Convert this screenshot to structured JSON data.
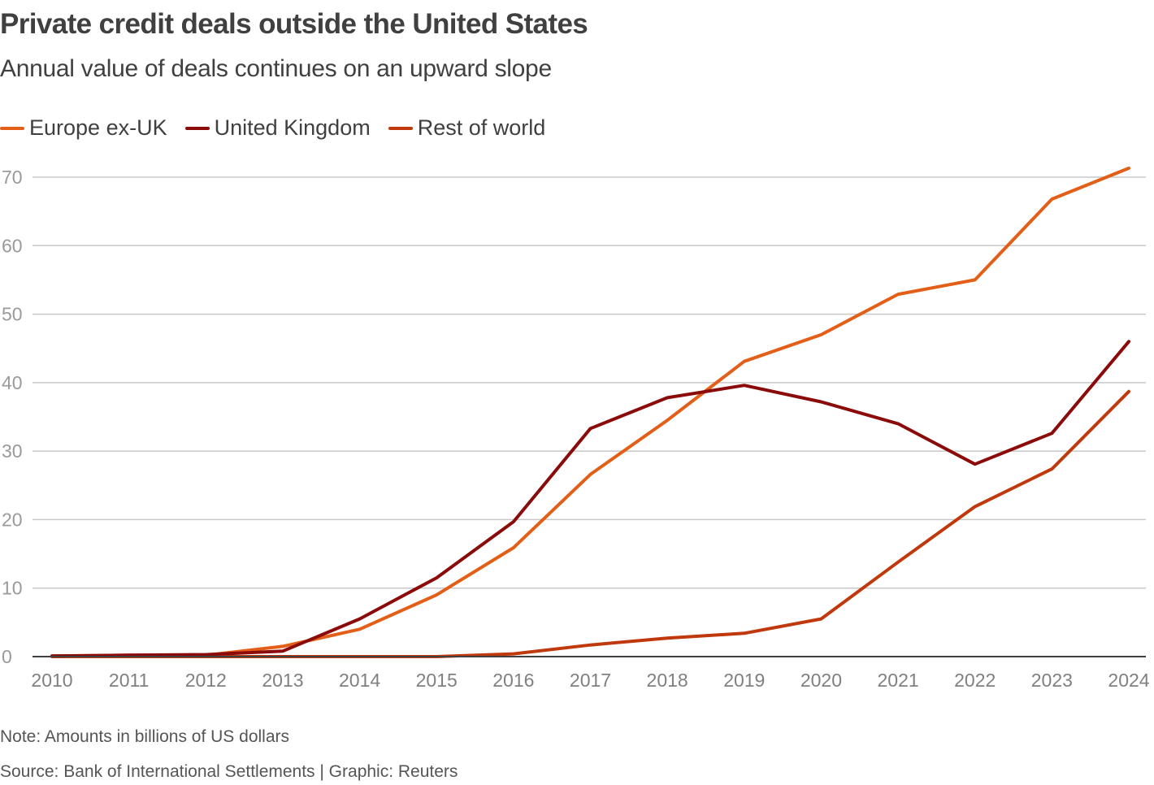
{
  "header": {
    "title": "Private credit deals outside the United States",
    "subtitle": "Annual value of deals continues on an upward slope"
  },
  "footer": {
    "note": "Note: Amounts in billions of US dollars",
    "source": "Source: Bank of International Settlements | Graphic: Reuters"
  },
  "chart_data": {
    "type": "line",
    "title": "Private credit deals outside the United States",
    "subtitle": "Annual value of deals continues on an upward slope",
    "xlabel": "",
    "ylabel": "",
    "units": "billions of US dollars",
    "x": [
      "2010",
      "2011",
      "2012",
      "2013",
      "2014",
      "2015",
      "2016",
      "2017",
      "2018",
      "2019",
      "2020",
      "2021",
      "2022",
      "2023",
      "2024"
    ],
    "yticks": [
      0,
      10,
      20,
      30,
      40,
      50,
      60,
      70
    ],
    "ylim": [
      0,
      72
    ],
    "grid": true,
    "legend_position": "top-left",
    "series": [
      {
        "name": "Europe ex-UK",
        "color": "#e35f18",
        "values": [
          0.1,
          0.2,
          0.2,
          1.5,
          4.0,
          9.0,
          15.9,
          26.6,
          34.5,
          43.1,
          47.0,
          52.9,
          55.0,
          66.8,
          71.3
        ]
      },
      {
        "name": "United Kingdom",
        "color": "#8b0a0a",
        "values": [
          0.1,
          0.2,
          0.3,
          0.8,
          5.5,
          11.5,
          19.7,
          33.3,
          37.8,
          39.6,
          37.2,
          34.0,
          28.1,
          32.6,
          46.0
        ]
      },
      {
        "name": "Rest of world",
        "color": "#c0390c",
        "values": [
          0.0,
          0.0,
          0.0,
          0.0,
          0.0,
          0.0,
          0.4,
          1.7,
          2.7,
          3.4,
          5.5,
          13.8,
          21.9,
          27.4,
          38.7
        ]
      }
    ]
  }
}
